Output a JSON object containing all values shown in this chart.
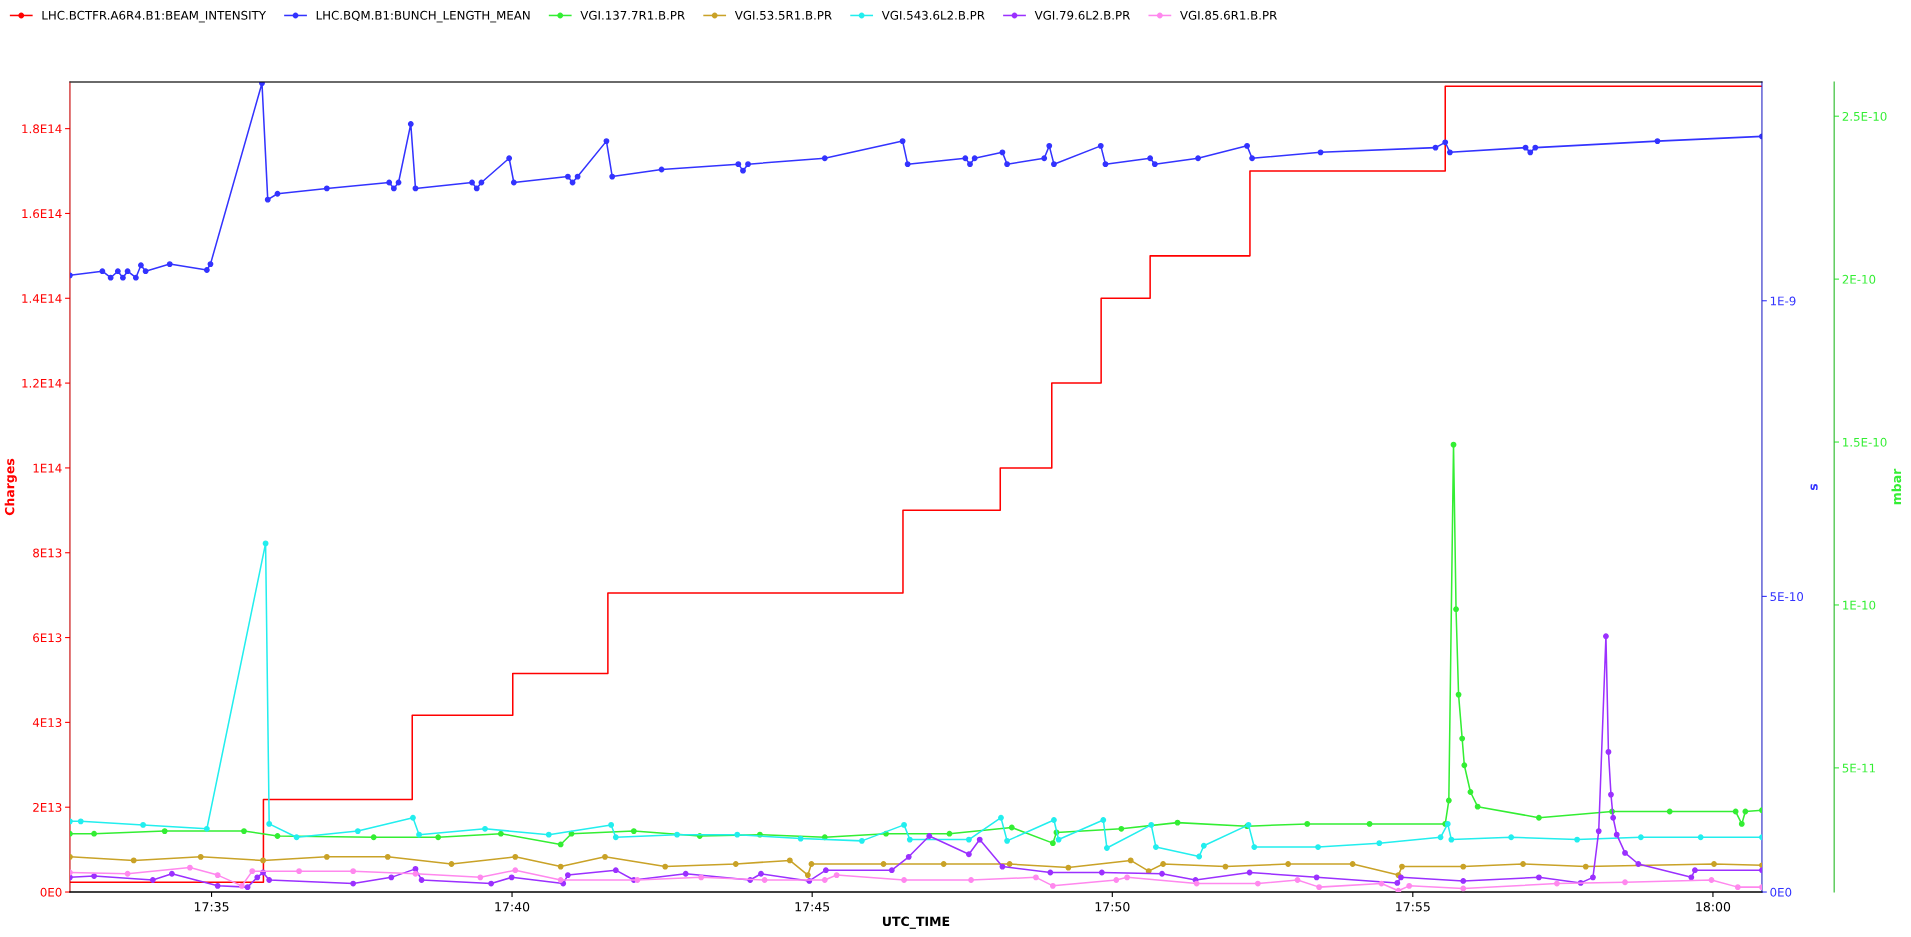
{
  "chart_data": {
    "type": "line",
    "xlabel": "UTC_TIME",
    "ylabel": "Charges",
    "y2label": "s",
    "y3label": "mbar",
    "xlim": [
      17.544,
      18.0136
    ],
    "xticks": [
      {
        "value": 17.5833,
        "label": "17:35"
      },
      {
        "value": 17.6667,
        "label": "17:40"
      },
      {
        "value": 17.75,
        "label": "17:45"
      },
      {
        "value": 17.8333,
        "label": "17:50"
      },
      {
        "value": 17.9167,
        "label": "17:55"
      },
      {
        "value": 18.0,
        "label": "18:00"
      }
    ],
    "ylim": [
      0,
      191000000000000.0
    ],
    "yticks": [
      {
        "value": 0,
        "label": "0E0"
      },
      {
        "value": 20000000000000.0,
        "label": "2E13"
      },
      {
        "value": 40000000000000.0,
        "label": "4E13"
      },
      {
        "value": 60000000000000.0,
        "label": "6E13"
      },
      {
        "value": 80000000000000.0,
        "label": "8E13"
      },
      {
        "value": 100000000000000.0,
        "label": "1E14"
      },
      {
        "value": 120000000000000.0,
        "label": "1.2E14"
      },
      {
        "value": 140000000000000.0,
        "label": "1.4E14"
      },
      {
        "value": 160000000000000.0,
        "label": "1.6E14"
      },
      {
        "value": 180000000000000.0,
        "label": "1.8E14"
      }
    ],
    "y2lim": [
      0,
      1.37e-09
    ],
    "y2ticks": [
      {
        "value": 0,
        "label": "0E0"
      },
      {
        "value": 5e-10,
        "label": "5E-10"
      },
      {
        "value": 1e-09,
        "label": "1E-9"
      }
    ],
    "y3lim": [
      1.19e-11,
      2.605e-10
    ],
    "y3ticks": [
      {
        "value": 5e-11,
        "label": "5E-11"
      },
      {
        "value": 1e-10,
        "label": "1E-10"
      },
      {
        "value": 1.5e-10,
        "label": "1.5E-10"
      },
      {
        "value": 2e-10,
        "label": "2E-10"
      },
      {
        "value": 2.5e-10,
        "label": "2.5E-10"
      }
    ],
    "grid": false,
    "legend": "top",
    "marker": "circle",
    "line_style": "solid",
    "series": [
      {
        "name": "LHC.BCTFR.A6R4.B1:BEAM_INTENSITY",
        "color": "#ff0000",
        "type": "step",
        "marker": "none",
        "axis": "y",
        "x": [
          17.544,
          17.5977,
          17.639,
          17.6669,
          17.6933,
          17.7752,
          17.8022,
          17.8165,
          17.8302,
          17.8438,
          17.8715,
          17.9257,
          18.0136
        ],
        "values": [
          2300000000000.0,
          21800000000000.0,
          41700000000000.0,
          51500000000000.0,
          70500000000000.0,
          90000000000000.0,
          100000000000000.0,
          120000000000000.0,
          140000000000000.0,
          150000000000000.0,
          170000000000000.0,
          190000000000000.0,
          190000000000000.0
        ]
      },
      {
        "name": "LHC.BQM.B1:BUNCH_LENGTH_MEAN",
        "color": "#3333ff",
        "axis": "y2",
        "x": [
          17.544,
          17.553,
          17.5553,
          17.5573,
          17.5587,
          17.56,
          17.5623,
          17.5637,
          17.565,
          17.5717,
          17.582,
          17.583,
          17.5973,
          17.5989,
          17.6016,
          17.6153,
          17.6326,
          17.6339,
          17.6352,
          17.6386,
          17.6399,
          17.6556,
          17.6569,
          17.6582,
          17.6659,
          17.6672,
          17.6822,
          17.6835,
          17.6849,
          17.6929,
          17.6945,
          17.7082,
          17.7295,
          17.7308,
          17.7322,
          17.7535,
          17.7751,
          17.7765,
          17.7925,
          17.7938,
          17.7951,
          17.8028,
          17.8041,
          17.8144,
          17.8158,
          17.8171,
          17.8301,
          17.8314,
          17.8438,
          17.8451,
          17.8571,
          17.8707,
          17.8721,
          17.8911,
          17.923,
          17.9257,
          17.927,
          17.948,
          17.9493,
          17.9507,
          17.9846,
          18.0136
        ],
        "values": [
          1.043e-09,
          1.05e-09,
          1.039e-09,
          1.05e-09,
          1.039e-09,
          1.05e-09,
          1.039e-09,
          1.06e-09,
          1.05e-09,
          1.062e-09,
          1.052e-09,
          1.062e-09,
          1.368e-09,
          1.171e-09,
          1.181e-09,
          1.19e-09,
          1.2e-09,
          1.19e-09,
          1.2e-09,
          1.299e-09,
          1.19e-09,
          1.2e-09,
          1.19e-09,
          1.2e-09,
          1.241e-09,
          1.2e-09,
          1.21e-09,
          1.2e-09,
          1.21e-09,
          1.27e-09,
          1.21e-09,
          1.222e-09,
          1.231e-09,
          1.22e-09,
          1.231e-09,
          1.241e-09,
          1.27e-09,
          1.231e-09,
          1.241e-09,
          1.231e-09,
          1.241e-09,
          1.251e-09,
          1.231e-09,
          1.241e-09,
          1.262e-09,
          1.231e-09,
          1.262e-09,
          1.231e-09,
          1.241e-09,
          1.231e-09,
          1.241e-09,
          1.262e-09,
          1.241e-09,
          1.251e-09,
          1.259e-09,
          1.268e-09,
          1.251e-09,
          1.259e-09,
          1.251e-09,
          1.259e-09,
          1.27e-09,
          1.278e-09
        ]
      },
      {
        "name": "VGI.137.7R1.B.PR",
        "color": "#33ee33",
        "axis": "y3",
        "x": [
          17.544,
          17.5507,
          17.5703,
          17.5923,
          17.6016,
          17.6283,
          17.6462,
          17.6636,
          17.6802,
          17.6832,
          17.7005,
          17.7188,
          17.7355,
          17.7535,
          17.7705,
          17.7881,
          17.8054,
          17.8168,
          17.8178,
          17.8358,
          17.8514,
          17.8707,
          17.8874,
          17.9047,
          17.9257,
          17.9267,
          17.928,
          17.9287,
          17.9294,
          17.9304,
          17.931,
          17.9327,
          17.9347,
          17.9517,
          17.972,
          17.988,
          18.0063,
          18.008,
          18.009,
          18.0136
        ],
        "values": [
          2.98e-11,
          2.98e-11,
          3.06e-11,
          3.06e-11,
          2.91e-11,
          2.87e-11,
          2.87e-11,
          2.98e-11,
          2.65e-11,
          2.98e-11,
          3.06e-11,
          2.91e-11,
          2.95e-11,
          2.87e-11,
          2.98e-11,
          2.98e-11,
          3.17e-11,
          2.69e-11,
          3.02e-11,
          3.13e-11,
          3.32e-11,
          3.21e-11,
          3.28e-11,
          3.28e-11,
          3.28e-11,
          4e-11,
          1.492e-10,
          9.87e-11,
          7.25e-11,
          5.9e-11,
          5.08e-11,
          4.26e-11,
          3.81e-11,
          3.47e-11,
          3.66e-11,
          3.66e-11,
          3.66e-11,
          3.28e-11,
          3.66e-11,
          3.7e-11
        ]
      },
      {
        "name": "VGI.53.5R1.B.PR",
        "color": "#c9a227",
        "axis": "y3",
        "x": [
          17.544,
          17.5617,
          17.5803,
          17.5976,
          17.6153,
          17.6322,
          17.6499,
          17.6676,
          17.6802,
          17.6925,
          17.7092,
          17.7288,
          17.7438,
          17.7488,
          17.7498,
          17.7698,
          17.7865,
          17.8048,
          17.8211,
          17.8384,
          17.8434,
          17.8474,
          17.8647,
          17.8821,
          17.9,
          17.9127,
          17.9137,
          17.9307,
          17.9473,
          17.9647,
          18.0003,
          18.0136
        ],
        "values": [
          2.27e-11,
          2.16e-11,
          2.27e-11,
          2.16e-11,
          2.27e-11,
          2.27e-11,
          2.05e-11,
          2.27e-11,
          1.97e-11,
          2.27e-11,
          1.97e-11,
          2.05e-11,
          2.16e-11,
          1.71e-11,
          2.05e-11,
          2.05e-11,
          2.05e-11,
          2.05e-11,
          1.94e-11,
          2.16e-11,
          1.83e-11,
          2.05e-11,
          1.97e-11,
          2.05e-11,
          2.05e-11,
          1.71e-11,
          1.97e-11,
          1.97e-11,
          2.05e-11,
          1.97e-11,
          2.05e-11,
          2.01e-11
        ]
      },
      {
        "name": "VGI.543.6L2.B.PR",
        "color": "#22eeee",
        "axis": "y3",
        "x": [
          17.544,
          17.547,
          17.5643,
          17.582,
          17.5983,
          17.5993,
          17.6069,
          17.6239,
          17.6392,
          17.6409,
          17.6592,
          17.6769,
          17.6942,
          17.6955,
          17.7125,
          17.7292,
          17.7468,
          17.7638,
          17.7755,
          17.7771,
          17.7935,
          17.8024,
          17.8041,
          17.8171,
          17.8184,
          17.8308,
          17.8318,
          17.8441,
          17.8454,
          17.8574,
          17.8587,
          17.8711,
          17.8727,
          17.8904,
          17.9074,
          17.9244,
          17.9264,
          17.9274,
          17.944,
          17.9623,
          17.98,
          17.9966,
          18.0136
        ],
        "values": [
          3.36e-11,
          3.36e-11,
          3.25e-11,
          3.13e-11,
          1.189e-10,
          3.28e-11,
          2.87e-11,
          3.06e-11,
          3.47e-11,
          2.95e-11,
          3.13e-11,
          2.95e-11,
          3.25e-11,
          2.87e-11,
          2.95e-11,
          2.95e-11,
          2.83e-11,
          2.76e-11,
          3.25e-11,
          2.8e-11,
          2.8e-11,
          3.47e-11,
          2.76e-11,
          3.4e-11,
          2.8e-11,
          3.4e-11,
          2.54e-11,
          3.25e-11,
          2.57e-11,
          2.28e-11,
          2.61e-11,
          3.25e-11,
          2.57e-11,
          2.57e-11,
          2.69e-11,
          2.87e-11,
          3.28e-11,
          2.8e-11,
          2.87e-11,
          2.8e-11,
          2.87e-11,
          2.87e-11,
          2.87e-11
        ]
      },
      {
        "name": "VGI.79.6L2.B.PR",
        "color": "#9b30ff",
        "axis": "y3",
        "x": [
          17.544,
          17.5507,
          17.567,
          17.5723,
          17.585,
          17.5933,
          17.596,
          17.5976,
          17.5993,
          17.6226,
          17.6332,
          17.6399,
          17.6416,
          17.6609,
          17.6666,
          17.6809,
          17.6822,
          17.6955,
          17.7005,
          17.7149,
          17.7328,
          17.7358,
          17.7492,
          17.7538,
          17.7721,
          17.7768,
          17.7825,
          17.7935,
          17.7965,
          17.8028,
          17.8161,
          17.8304,
          17.8471,
          17.8564,
          17.8714,
          17.89,
          17.9124,
          17.9134,
          17.9307,
          17.9517,
          17.9633,
          17.9667,
          17.9683,
          17.9703,
          17.971,
          17.9717,
          17.9723,
          17.9733,
          17.9756,
          17.9793,
          17.994,
          17.995,
          18.0136
        ],
        "values": [
          1.64e-11,
          1.68e-11,
          1.56e-11,
          1.75e-11,
          1.38e-11,
          1.34e-11,
          1.64e-11,
          1.79e-11,
          1.56e-11,
          1.45e-11,
          1.64e-11,
          1.9e-11,
          1.56e-11,
          1.45e-11,
          1.64e-11,
          1.45e-11,
          1.71e-11,
          1.86e-11,
          1.56e-11,
          1.75e-11,
          1.56e-11,
          1.75e-11,
          1.53e-11,
          1.86e-11,
          1.86e-11,
          2.27e-11,
          2.91e-11,
          2.35e-11,
          2.8e-11,
          1.97e-11,
          1.79e-11,
          1.79e-11,
          1.75e-11,
          1.56e-11,
          1.79e-11,
          1.64e-11,
          1.47e-11,
          1.64e-11,
          1.53e-11,
          1.64e-11,
          1.47e-11,
          1.64e-11,
          3.06e-11,
          9.04e-11,
          5.49e-11,
          4.18e-11,
          3.47e-11,
          2.95e-11,
          2.39e-11,
          2.05e-11,
          1.64e-11,
          1.86e-11,
          1.86e-11
        ]
      },
      {
        "name": "VGI.85.6R1.B.PR",
        "color": "#ff88ee",
        "axis": "y3",
        "x": [
          17.544,
          17.56,
          17.5773,
          17.585,
          17.5917,
          17.5946,
          17.6076,
          17.6226,
          17.6399,
          17.6579,
          17.6676,
          17.6802,
          17.7015,
          17.7192,
          17.7368,
          17.7535,
          17.7568,
          17.7755,
          17.7941,
          17.8121,
          17.8168,
          17.8344,
          17.8374,
          17.8567,
          17.8737,
          17.8847,
          17.8907,
          17.908,
          17.9127,
          17.9157,
          17.9307,
          17.9567,
          17.9756,
          17.9996,
          18.0069,
          18.0136
        ],
        "values": [
          1.79e-11,
          1.75e-11,
          1.94e-11,
          1.71e-11,
          1.38e-11,
          1.83e-11,
          1.83e-11,
          1.83e-11,
          1.75e-11,
          1.64e-11,
          1.86e-11,
          1.56e-11,
          1.56e-11,
          1.64e-11,
          1.56e-11,
          1.56e-11,
          1.71e-11,
          1.56e-11,
          1.56e-11,
          1.64e-11,
          1.38e-11,
          1.56e-11,
          1.64e-11,
          1.45e-11,
          1.45e-11,
          1.56e-11,
          1.34e-11,
          1.45e-11,
          1.23e-11,
          1.38e-11,
          1.3e-11,
          1.45e-11,
          1.49e-11,
          1.56e-11,
          1.34e-11,
          1.34e-11
        ]
      }
    ]
  }
}
